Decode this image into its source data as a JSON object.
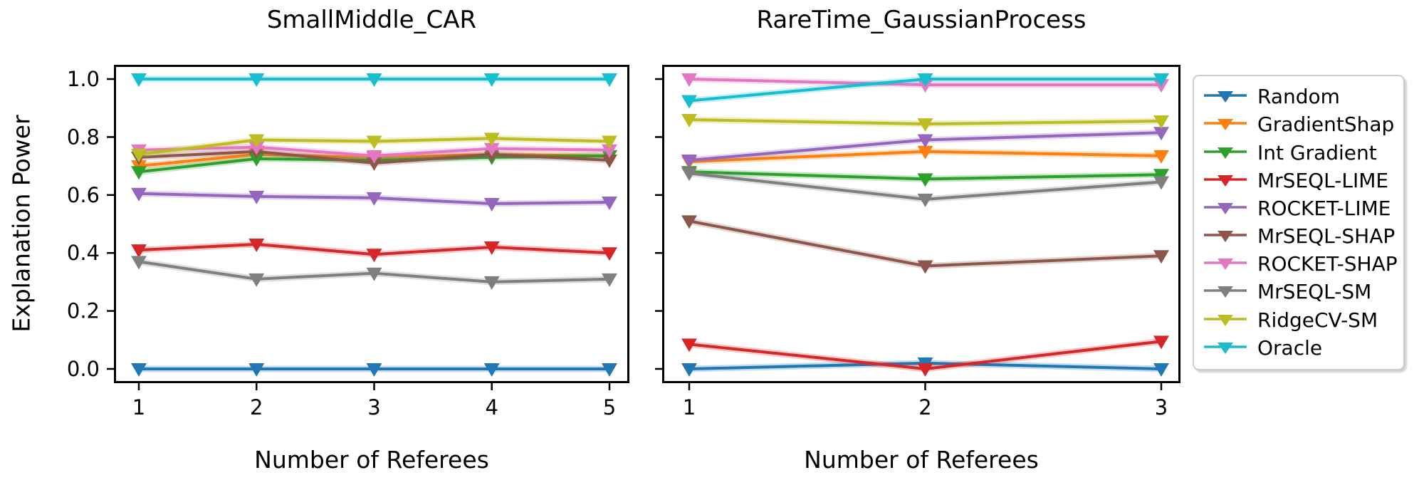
{
  "figure": {
    "ylabel": "Explanation Power",
    "background": "#ffffff",
    "axis_color": "#000000",
    "marker": "triangle-down-icon",
    "legend_position": "right"
  },
  "chart_data": [
    {
      "type": "line",
      "title": "SmallMiddle_CAR",
      "xlabel": "Number of Referees",
      "ylabel": "Explanation Power",
      "x": [
        1,
        2,
        3,
        4,
        5
      ],
      "ylim": [
        0.0,
        1.0
      ],
      "yticks": [
        0.0,
        0.2,
        0.4,
        0.6,
        0.8,
        1.0
      ],
      "ytick_labels": [
        "0.0",
        "0.2",
        "0.4",
        "0.6",
        "0.8",
        "1.0"
      ],
      "grid": false,
      "marker": "triangle-down",
      "series": [
        {
          "name": "Random",
          "color": "#1f77b4",
          "values": [
            0.0,
            0.0,
            0.0,
            0.0,
            0.0
          ]
        },
        {
          "name": "GradientShap",
          "color": "#ff7f0e",
          "values": [
            0.7,
            0.74,
            0.73,
            0.74,
            0.735
          ]
        },
        {
          "name": "Int Gradient",
          "color": "#2ca02c",
          "values": [
            0.68,
            0.725,
            0.72,
            0.73,
            0.735
          ]
        },
        {
          "name": "MrSEQL-LIME",
          "color": "#d62728",
          "values": [
            0.41,
            0.43,
            0.395,
            0.42,
            0.4
          ]
        },
        {
          "name": "ROCKET-LIME",
          "color": "#9467bd",
          "values": [
            0.605,
            0.595,
            0.59,
            0.57,
            0.575
          ]
        },
        {
          "name": "MrSEQL-SHAP",
          "color": "#8c564b",
          "values": [
            0.73,
            0.75,
            0.71,
            0.74,
            0.72
          ]
        },
        {
          "name": "ROCKET-SHAP",
          "color": "#e377c2",
          "values": [
            0.755,
            0.765,
            0.735,
            0.76,
            0.755
          ]
        },
        {
          "name": "MrSEQL-SM",
          "color": "#7f7f7f",
          "values": [
            0.37,
            0.31,
            0.33,
            0.3,
            0.31
          ]
        },
        {
          "name": "RidgeCV-SM",
          "color": "#bcbd22",
          "values": [
            0.74,
            0.79,
            0.785,
            0.795,
            0.785
          ]
        },
        {
          "name": "Oracle",
          "color": "#17becf",
          "values": [
            1.0,
            1.0,
            1.0,
            1.0,
            1.0
          ]
        }
      ]
    },
    {
      "type": "line",
      "title": "RareTime_GaussianProcess",
      "xlabel": "Number of Referees",
      "ylabel": "Explanation Power",
      "x": [
        1,
        2,
        3
      ],
      "ylim": [
        0.0,
        1.0
      ],
      "yticks": [
        0.0,
        0.2,
        0.4,
        0.6,
        0.8,
        1.0
      ],
      "ytick_labels": [
        "0.0",
        "0.2",
        "0.4",
        "0.6",
        "0.8",
        "1.0"
      ],
      "grid": false,
      "marker": "triangle-down",
      "series": [
        {
          "name": "Random",
          "color": "#1f77b4",
          "values": [
            0.0,
            0.02,
            0.0
          ]
        },
        {
          "name": "GradientShap",
          "color": "#ff7f0e",
          "values": [
            0.715,
            0.75,
            0.735
          ]
        },
        {
          "name": "Int Gradient",
          "color": "#2ca02c",
          "values": [
            0.68,
            0.655,
            0.67
          ]
        },
        {
          "name": "MrSEQL-LIME",
          "color": "#d62728",
          "values": [
            0.085,
            0.0,
            0.095
          ]
        },
        {
          "name": "ROCKET-LIME",
          "color": "#9467bd",
          "values": [
            0.72,
            0.79,
            0.815
          ]
        },
        {
          "name": "MrSEQL-SHAP",
          "color": "#8c564b",
          "values": [
            0.51,
            0.355,
            0.39
          ]
        },
        {
          "name": "ROCKET-SHAP",
          "color": "#e377c2",
          "values": [
            1.0,
            0.98,
            0.98
          ]
        },
        {
          "name": "MrSEQL-SM",
          "color": "#7f7f7f",
          "values": [
            0.675,
            0.585,
            0.645
          ]
        },
        {
          "name": "RidgeCV-SM",
          "color": "#bcbd22",
          "values": [
            0.86,
            0.845,
            0.855
          ]
        },
        {
          "name": "Oracle",
          "color": "#17becf",
          "values": [
            0.925,
            1.0,
            1.0
          ]
        }
      ]
    }
  ],
  "legend": {
    "entries": [
      {
        "label": "Random",
        "color": "#1f77b4"
      },
      {
        "label": "GradientShap",
        "color": "#ff7f0e"
      },
      {
        "label": "Int Gradient",
        "color": "#2ca02c"
      },
      {
        "label": "MrSEQL-LIME",
        "color": "#d62728"
      },
      {
        "label": "ROCKET-LIME",
        "color": "#9467bd"
      },
      {
        "label": "MrSEQL-SHAP",
        "color": "#8c564b"
      },
      {
        "label": "ROCKET-SHAP",
        "color": "#e377c2"
      },
      {
        "label": "MrSEQL-SM",
        "color": "#7f7f7f"
      },
      {
        "label": "RidgeCV-SM",
        "color": "#bcbd22"
      },
      {
        "label": "Oracle",
        "color": "#17becf"
      }
    ]
  }
}
